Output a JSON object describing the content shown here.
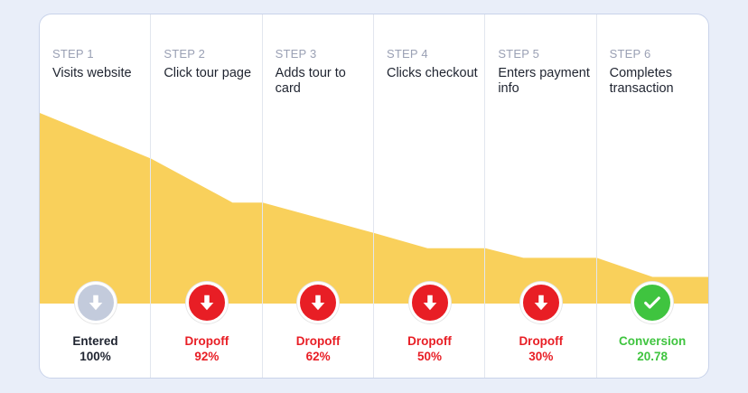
{
  "colors": {
    "funnel": "#f9d05b",
    "entered": "#c3cbdc",
    "dropoff": "#e81e25",
    "conversion": "#3fc43f",
    "text_dark": "#1f2430",
    "text_muted": "#9aa0b4"
  },
  "chart_data": {
    "type": "area",
    "steps": [
      {
        "step": "STEP 1",
        "title": "Visits website",
        "status": "Entered",
        "value_label": "100%",
        "kind": "entered",
        "icon": "arrow-down-icon"
      },
      {
        "step": "STEP 2",
        "title": "Click tour page",
        "status": "Dropoff",
        "value_label": "92%",
        "kind": "dropoff",
        "icon": "arrow-down-icon"
      },
      {
        "step": "STEP 3",
        "title": "Adds tour to card",
        "status": "Dropoff",
        "value_label": "62%",
        "kind": "dropoff",
        "icon": "arrow-down-icon"
      },
      {
        "step": "STEP 4",
        "title": "Clicks checkout",
        "status": "Dropoff",
        "value_label": "50%",
        "kind": "dropoff",
        "icon": "arrow-down-icon"
      },
      {
        "step": "STEP 5",
        "title": "Enters payment info",
        "status": "Dropoff",
        "value_label": "30%",
        "kind": "dropoff",
        "icon": "arrow-down-icon"
      },
      {
        "step": "STEP 6",
        "title": "Completes transaction",
        "status": "Conversion",
        "value_label": "20.78",
        "kind": "conversion",
        "icon": "checkmark-icon"
      }
    ],
    "profile": [
      {
        "x": 0,
        "y": 100
      },
      {
        "x": 1,
        "y": 76
      },
      {
        "x": 1.73,
        "y": 53
      },
      {
        "x": 2,
        "y": 53
      },
      {
        "x": 3,
        "y": 37
      },
      {
        "x": 3.48,
        "y": 29
      },
      {
        "x": 4,
        "y": 29
      },
      {
        "x": 4.34,
        "y": 24
      },
      {
        "x": 5,
        "y": 24
      },
      {
        "x": 5.5,
        "y": 14
      },
      {
        "x": 6,
        "y": 14
      }
    ]
  }
}
